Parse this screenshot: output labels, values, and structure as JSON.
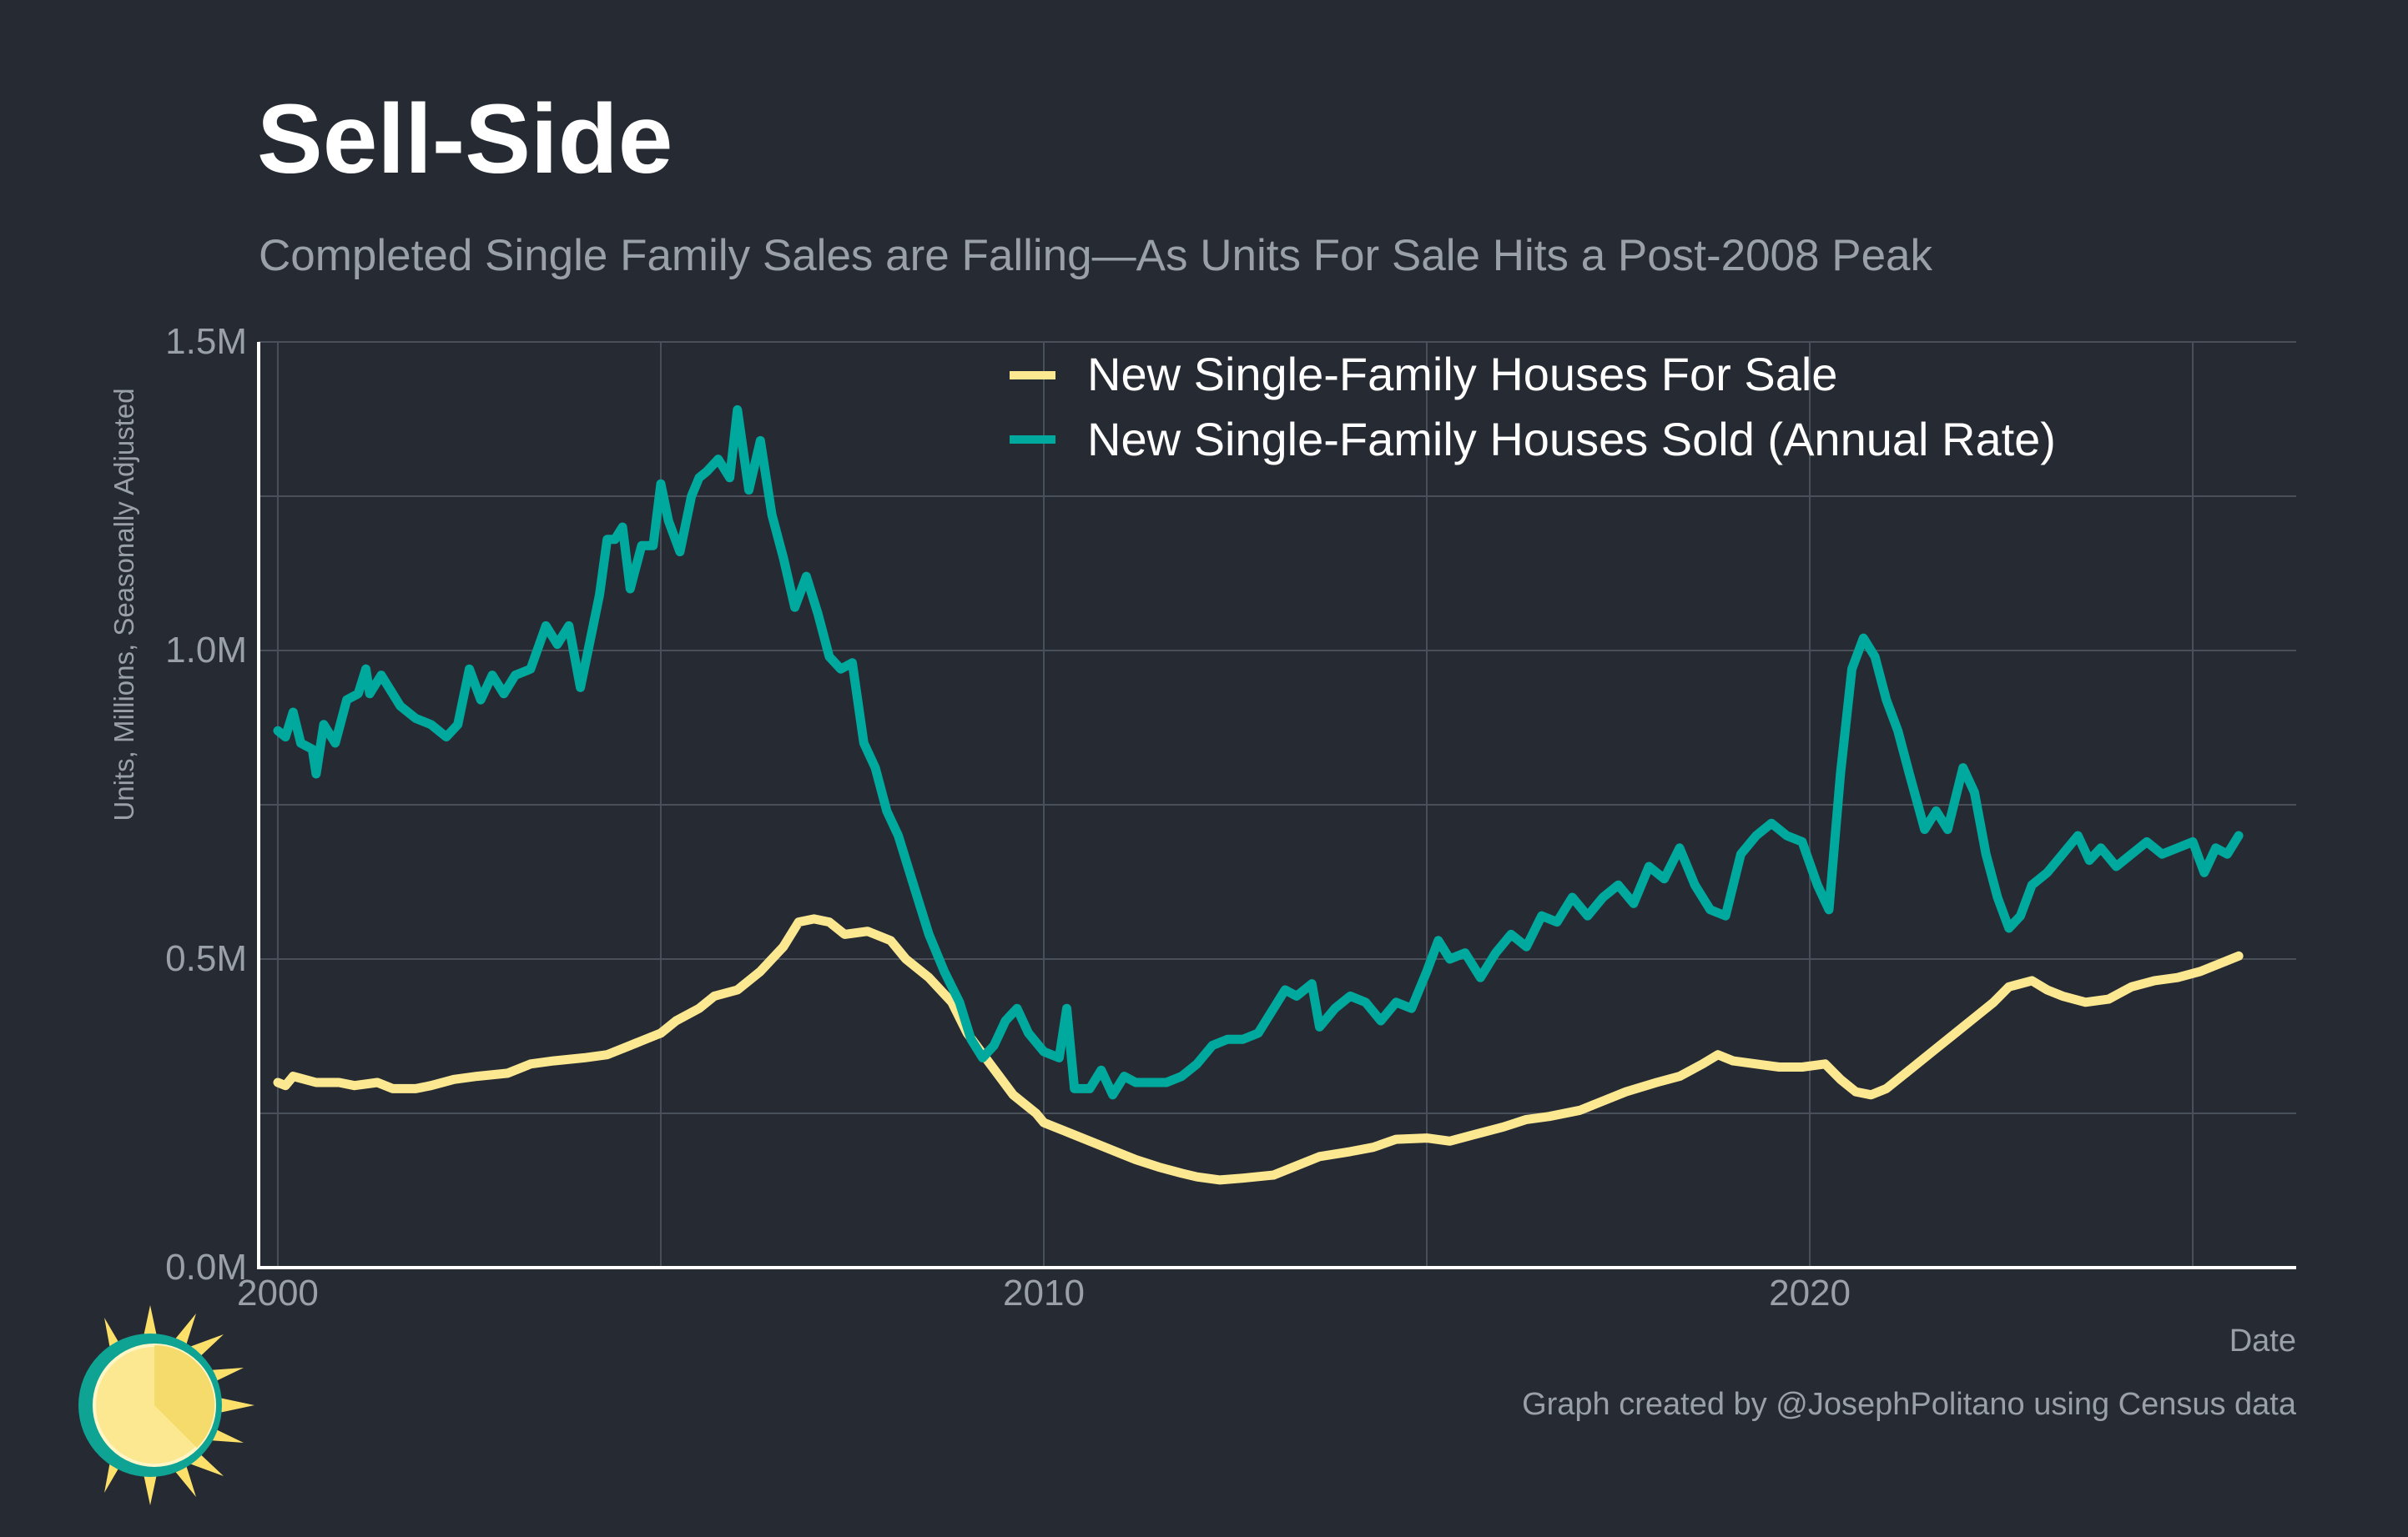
{
  "title": "Sell-Side",
  "subtitle": "Completed Single Family Sales are Falling—As Units For Sale Hits a Post-2008 Peak",
  "caption": "Graph created by @JosephPolitano using Census data",
  "colors": {
    "background": "#252a33",
    "grid": "#4a505a",
    "axis": "#ffffff",
    "tick_text": "#9aa0a8",
    "for_sale": "#fce891",
    "sold": "#00a99d"
  },
  "chart_data": {
    "type": "line",
    "xlabel": "Date",
    "ylabel": "Units, Millions, Seasonally Adjusted",
    "xlim": [
      1999.75,
      2026.35
    ],
    "ylim": [
      0,
      1.5
    ],
    "x_ticks": [
      2000,
      2010,
      2020
    ],
    "x_tick_labels": [
      "2000",
      "2010",
      "2020"
    ],
    "y_ticks": [
      0,
      0.5,
      1.0,
      1.5
    ],
    "y_tick_labels": [
      "0.0M",
      "0.5M",
      "1.0M",
      "1.5M"
    ],
    "grid": true,
    "legend_position": "top-right",
    "series": [
      {
        "name": "New Single-Family Houses For Sale",
        "color": "#fce891",
        "points": [
          [
            2000.0,
            0.3
          ],
          [
            2000.1,
            0.295
          ],
          [
            2000.2,
            0.31
          ],
          [
            2000.5,
            0.3
          ],
          [
            2000.8,
            0.3
          ],
          [
            2001.0,
            0.295
          ],
          [
            2001.3,
            0.3
          ],
          [
            2001.5,
            0.29
          ],
          [
            2001.8,
            0.29
          ],
          [
            2002.0,
            0.295
          ],
          [
            2002.3,
            0.305
          ],
          [
            2002.6,
            0.31
          ],
          [
            2003.0,
            0.315
          ],
          [
            2003.3,
            0.33
          ],
          [
            2003.6,
            0.335
          ],
          [
            2004.0,
            0.34
          ],
          [
            2004.3,
            0.345
          ],
          [
            2004.6,
            0.36
          ],
          [
            2004.8,
            0.37
          ],
          [
            2005.0,
            0.38
          ],
          [
            2005.2,
            0.4
          ],
          [
            2005.5,
            0.42
          ],
          [
            2005.7,
            0.44
          ],
          [
            2006.0,
            0.45
          ],
          [
            2006.3,
            0.48
          ],
          [
            2006.6,
            0.52
          ],
          [
            2006.8,
            0.56
          ],
          [
            2007.0,
            0.565
          ],
          [
            2007.2,
            0.56
          ],
          [
            2007.4,
            0.54
          ],
          [
            2007.7,
            0.545
          ],
          [
            2008.0,
            0.53
          ],
          [
            2008.2,
            0.5
          ],
          [
            2008.5,
            0.47
          ],
          [
            2008.8,
            0.43
          ],
          [
            2009.0,
            0.38
          ],
          [
            2009.3,
            0.33
          ],
          [
            2009.6,
            0.28
          ],
          [
            2009.9,
            0.25
          ],
          [
            2010.0,
            0.235
          ],
          [
            2010.2,
            0.225
          ],
          [
            2010.4,
            0.215
          ],
          [
            2010.7,
            0.2
          ],
          [
            2011.0,
            0.185
          ],
          [
            2011.2,
            0.175
          ],
          [
            2011.5,
            0.163
          ],
          [
            2011.8,
            0.153
          ],
          [
            2012.0,
            0.147
          ],
          [
            2012.3,
            0.142
          ],
          [
            2012.6,
            0.145
          ],
          [
            2013.0,
            0.15
          ],
          [
            2013.3,
            0.165
          ],
          [
            2013.6,
            0.18
          ],
          [
            2014.0,
            0.188
          ],
          [
            2014.3,
            0.195
          ],
          [
            2014.6,
            0.208
          ],
          [
            2015.0,
            0.21
          ],
          [
            2015.3,
            0.205
          ],
          [
            2015.6,
            0.215
          ],
          [
            2016.0,
            0.228
          ],
          [
            2016.3,
            0.24
          ],
          [
            2016.6,
            0.245
          ],
          [
            2017.0,
            0.255
          ],
          [
            2017.3,
            0.27
          ],
          [
            2017.6,
            0.285
          ],
          [
            2018.0,
            0.3
          ],
          [
            2018.3,
            0.31
          ],
          [
            2018.6,
            0.33
          ],
          [
            2018.8,
            0.345
          ],
          [
            2019.0,
            0.335
          ],
          [
            2019.3,
            0.33
          ],
          [
            2019.6,
            0.325
          ],
          [
            2019.9,
            0.325
          ],
          [
            2020.2,
            0.33
          ],
          [
            2020.4,
            0.305
          ],
          [
            2020.6,
            0.285
          ],
          [
            2020.8,
            0.28
          ],
          [
            2021.0,
            0.29
          ],
          [
            2021.3,
            0.32
          ],
          [
            2021.6,
            0.35
          ],
          [
            2021.9,
            0.38
          ],
          [
            2022.2,
            0.41
          ],
          [
            2022.4,
            0.43
          ],
          [
            2022.6,
            0.455
          ],
          [
            2022.9,
            0.465
          ],
          [
            2023.1,
            0.45
          ],
          [
            2023.3,
            0.44
          ],
          [
            2023.6,
            0.43
          ],
          [
            2023.9,
            0.435
          ],
          [
            2024.2,
            0.455
          ],
          [
            2024.5,
            0.465
          ],
          [
            2024.8,
            0.47
          ],
          [
            2025.1,
            0.48
          ],
          [
            2025.4,
            0.495
          ],
          [
            2025.6,
            0.505
          ]
        ]
      },
      {
        "name": "New Single-Family Houses Sold (Annual Rate)",
        "color": "#00a99d",
        "points": [
          [
            2000.0,
            0.87
          ],
          [
            2000.1,
            0.86
          ],
          [
            2000.2,
            0.9
          ],
          [
            2000.3,
            0.85
          ],
          [
            2000.45,
            0.84
          ],
          [
            2000.5,
            0.8
          ],
          [
            2000.6,
            0.88
          ],
          [
            2000.75,
            0.85
          ],
          [
            2000.9,
            0.92
          ],
          [
            2001.05,
            0.93
          ],
          [
            2001.15,
            0.97
          ],
          [
            2001.2,
            0.93
          ],
          [
            2001.35,
            0.96
          ],
          [
            2001.6,
            0.91
          ],
          [
            2001.8,
            0.89
          ],
          [
            2002.0,
            0.88
          ],
          [
            2002.2,
            0.86
          ],
          [
            2002.35,
            0.88
          ],
          [
            2002.5,
            0.97
          ],
          [
            2002.65,
            0.92
          ],
          [
            2002.8,
            0.96
          ],
          [
            2002.95,
            0.93
          ],
          [
            2003.1,
            0.96
          ],
          [
            2003.3,
            0.97
          ],
          [
            2003.5,
            1.04
          ],
          [
            2003.65,
            1.01
          ],
          [
            2003.8,
            1.04
          ],
          [
            2003.95,
            0.94
          ],
          [
            2004.05,
            1.0
          ],
          [
            2004.2,
            1.09
          ],
          [
            2004.3,
            1.18
          ],
          [
            2004.4,
            1.18
          ],
          [
            2004.5,
            1.2
          ],
          [
            2004.6,
            1.1
          ],
          [
            2004.75,
            1.17
          ],
          [
            2004.9,
            1.17
          ],
          [
            2005.0,
            1.27
          ],
          [
            2005.1,
            1.21
          ],
          [
            2005.25,
            1.16
          ],
          [
            2005.4,
            1.25
          ],
          [
            2005.5,
            1.28
          ],
          [
            2005.6,
            1.29
          ],
          [
            2005.75,
            1.31
          ],
          [
            2005.9,
            1.28
          ],
          [
            2006.0,
            1.39
          ],
          [
            2006.15,
            1.26
          ],
          [
            2006.3,
            1.34
          ],
          [
            2006.45,
            1.22
          ],
          [
            2006.6,
            1.15
          ],
          [
            2006.75,
            1.07
          ],
          [
            2006.9,
            1.12
          ],
          [
            2007.05,
            1.06
          ],
          [
            2007.2,
            0.99
          ],
          [
            2007.35,
            0.97
          ],
          [
            2007.5,
            0.98
          ],
          [
            2007.65,
            0.85
          ],
          [
            2007.8,
            0.81
          ],
          [
            2007.95,
            0.74
          ],
          [
            2008.1,
            0.7
          ],
          [
            2008.3,
            0.62
          ],
          [
            2008.5,
            0.54
          ],
          [
            2008.7,
            0.48
          ],
          [
            2008.9,
            0.43
          ],
          [
            2009.05,
            0.37
          ],
          [
            2009.2,
            0.34
          ],
          [
            2009.35,
            0.36
          ],
          [
            2009.5,
            0.4
          ],
          [
            2009.65,
            0.42
          ],
          [
            2009.8,
            0.38
          ],
          [
            2010.0,
            0.35
          ],
          [
            2010.2,
            0.34
          ],
          [
            2010.3,
            0.42
          ],
          [
            2010.4,
            0.29
          ],
          [
            2010.6,
            0.29
          ],
          [
            2010.75,
            0.32
          ],
          [
            2010.9,
            0.28
          ],
          [
            2011.05,
            0.31
          ],
          [
            2011.2,
            0.3
          ],
          [
            2011.4,
            0.3
          ],
          [
            2011.6,
            0.3
          ],
          [
            2011.8,
            0.31
          ],
          [
            2012.0,
            0.33
          ],
          [
            2012.2,
            0.36
          ],
          [
            2012.4,
            0.37
          ],
          [
            2012.6,
            0.37
          ],
          [
            2012.8,
            0.38
          ],
          [
            2013.0,
            0.42
          ],
          [
            2013.15,
            0.45
          ],
          [
            2013.3,
            0.44
          ],
          [
            2013.5,
            0.46
          ],
          [
            2013.6,
            0.39
          ],
          [
            2013.8,
            0.42
          ],
          [
            2014.0,
            0.44
          ],
          [
            2014.2,
            0.43
          ],
          [
            2014.4,
            0.4
          ],
          [
            2014.6,
            0.43
          ],
          [
            2014.8,
            0.42
          ],
          [
            2015.0,
            0.48
          ],
          [
            2015.15,
            0.53
          ],
          [
            2015.3,
            0.5
          ],
          [
            2015.5,
            0.51
          ],
          [
            2015.7,
            0.47
          ],
          [
            2015.9,
            0.51
          ],
          [
            2016.1,
            0.54
          ],
          [
            2016.3,
            0.52
          ],
          [
            2016.5,
            0.57
          ],
          [
            2016.7,
            0.56
          ],
          [
            2016.9,
            0.6
          ],
          [
            2017.1,
            0.57
          ],
          [
            2017.3,
            0.6
          ],
          [
            2017.5,
            0.62
          ],
          [
            2017.7,
            0.59
          ],
          [
            2017.9,
            0.65
          ],
          [
            2018.1,
            0.63
          ],
          [
            2018.3,
            0.68
          ],
          [
            2018.5,
            0.62
          ],
          [
            2018.7,
            0.58
          ],
          [
            2018.9,
            0.57
          ],
          [
            2019.1,
            0.67
          ],
          [
            2019.3,
            0.7
          ],
          [
            2019.5,
            0.72
          ],
          [
            2019.7,
            0.7
          ],
          [
            2019.9,
            0.69
          ],
          [
            2020.1,
            0.62
          ],
          [
            2020.25,
            0.58
          ],
          [
            2020.4,
            0.8
          ],
          [
            2020.55,
            0.97
          ],
          [
            2020.7,
            1.02
          ],
          [
            2020.85,
            0.99
          ],
          [
            2021.0,
            0.92
          ],
          [
            2021.15,
            0.87
          ],
          [
            2021.3,
            0.8
          ],
          [
            2021.5,
            0.71
          ],
          [
            2021.65,
            0.74
          ],
          [
            2021.8,
            0.71
          ],
          [
            2022.0,
            0.81
          ],
          [
            2022.15,
            0.77
          ],
          [
            2022.3,
            0.67
          ],
          [
            2022.45,
            0.6
          ],
          [
            2022.6,
            0.55
          ],
          [
            2022.75,
            0.57
          ],
          [
            2022.9,
            0.62
          ],
          [
            2023.1,
            0.64
          ],
          [
            2023.3,
            0.67
          ],
          [
            2023.5,
            0.7
          ],
          [
            2023.65,
            0.66
          ],
          [
            2023.8,
            0.68
          ],
          [
            2024.0,
            0.65
          ],
          [
            2024.2,
            0.67
          ],
          [
            2024.4,
            0.69
          ],
          [
            2024.6,
            0.67
          ],
          [
            2024.8,
            0.68
          ],
          [
            2025.0,
            0.69
          ],
          [
            2025.15,
            0.64
          ],
          [
            2025.3,
            0.68
          ],
          [
            2025.45,
            0.67
          ],
          [
            2025.6,
            0.7
          ]
        ]
      }
    ]
  }
}
